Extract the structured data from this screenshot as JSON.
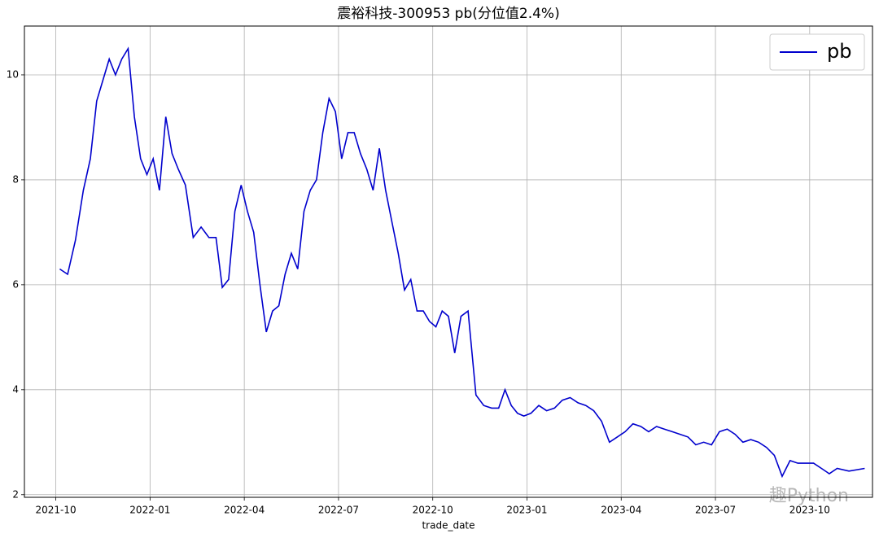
{
  "chart_data": {
    "type": "line",
    "title": "震裕科技-300953 pb(分位值2.4%)",
    "x_label": "trade_date",
    "watermark": "趣Python",
    "x": [
      "2021-10",
      "2021-10",
      "2021-10",
      "2021-10",
      "2021-11",
      "2021-11",
      "2021-11",
      "2021-11",
      "2021-11",
      "2021-12",
      "2021-12",
      "2021-12",
      "2021-12",
      "2021-12",
      "2022-01",
      "2022-01",
      "2022-01",
      "2022-01",
      "2022-01",
      "2022-02",
      "2022-02",
      "2022-02",
      "2022-02",
      "2022-03",
      "2022-03",
      "2022-03",
      "2022-03",
      "2022-03",
      "2022-04",
      "2022-04",
      "2022-04",
      "2022-04",
      "2022-04",
      "2022-05",
      "2022-05",
      "2022-05",
      "2022-05",
      "2022-05",
      "2022-06",
      "2022-06",
      "2022-06",
      "2022-06",
      "2022-06",
      "2022-07",
      "2022-07",
      "2022-07",
      "2022-07",
      "2022-07",
      "2022-08",
      "2022-08",
      "2022-08",
      "2022-08",
      "2022-08",
      "2022-09",
      "2022-09",
      "2022-09",
      "2022-09",
      "2022-09",
      "2022-10",
      "2022-10",
      "2022-10",
      "2022-10",
      "2022-10",
      "2022-11",
      "2022-11",
      "2022-11",
      "2022-11",
      "2022-12",
      "2022-12",
      "2022-12",
      "2022-12",
      "2022-12",
      "2023-01",
      "2023-01",
      "2023-01",
      "2023-01",
      "2023-02",
      "2023-02",
      "2023-02",
      "2023-02",
      "2023-03",
      "2023-03",
      "2023-03",
      "2023-03",
      "2023-04",
      "2023-04",
      "2023-04",
      "2023-04",
      "2023-05",
      "2023-05",
      "2023-05",
      "2023-05",
      "2023-06",
      "2023-06",
      "2023-06",
      "2023-06",
      "2023-07",
      "2023-07",
      "2023-07",
      "2023-07",
      "2023-08",
      "2023-08",
      "2023-08",
      "2023-08",
      "2023-09",
      "2023-09",
      "2023-09",
      "2023-09",
      "2023-10",
      "2023-10",
      "2023-10",
      "2023-10",
      "2023-11",
      "2023-11"
    ],
    "series": [
      {
        "name": "pb",
        "color": "#0000cd",
        "values": [
          6.3,
          6.2,
          6.85,
          7.8,
          8.4,
          9.5,
          9.9,
          10.3,
          10.0,
          10.3,
          10.5,
          9.2,
          8.4,
          8.1,
          8.4,
          7.8,
          9.2,
          8.5,
          8.2,
          7.9,
          6.9,
          7.1,
          6.9,
          6.9,
          5.95,
          6.1,
          7.4,
          7.9,
          7.4,
          7.0,
          6.0,
          5.1,
          5.5,
          5.6,
          6.2,
          6.6,
          6.3,
          7.4,
          7.8,
          8.0,
          8.9,
          9.55,
          9.3,
          8.4,
          8.9,
          8.9,
          8.5,
          8.2,
          7.8,
          8.6,
          7.8,
          7.2,
          6.6,
          5.9,
          6.1,
          5.5,
          5.5,
          5.3,
          5.2,
          5.5,
          5.4,
          4.7,
          5.4,
          5.5,
          3.9,
          3.7,
          3.65,
          3.65,
          4.0,
          3.7,
          3.55,
          3.5,
          3.55,
          3.7,
          3.6,
          3.65,
          3.8,
          3.85,
          3.75,
          3.7,
          3.6,
          3.4,
          3.0,
          3.1,
          3.2,
          3.35,
          3.3,
          3.2,
          3.3,
          3.25,
          3.2,
          3.15,
          3.1,
          2.95,
          3.0,
          2.95,
          3.2,
          3.25,
          3.15,
          3.0,
          3.05,
          3.0,
          2.9,
          2.75,
          2.35,
          2.65,
          2.6,
          2.6,
          2.6,
          2.5,
          2.4,
          2.5,
          2.45,
          2.5
        ]
      }
    ],
    "xlim": [
      "2021-09",
      "2023-12"
    ],
    "xticks": [
      "2021-10",
      "2022-01",
      "2022-04",
      "2022-07",
      "2022-10",
      "2023-01",
      "2023-04",
      "2023-07",
      "2023-10"
    ],
    "ylim": [
      1.95,
      10.93
    ],
    "yticks": [
      2,
      4,
      6,
      8,
      10
    ],
    "grid": true,
    "legend": "upper right"
  }
}
